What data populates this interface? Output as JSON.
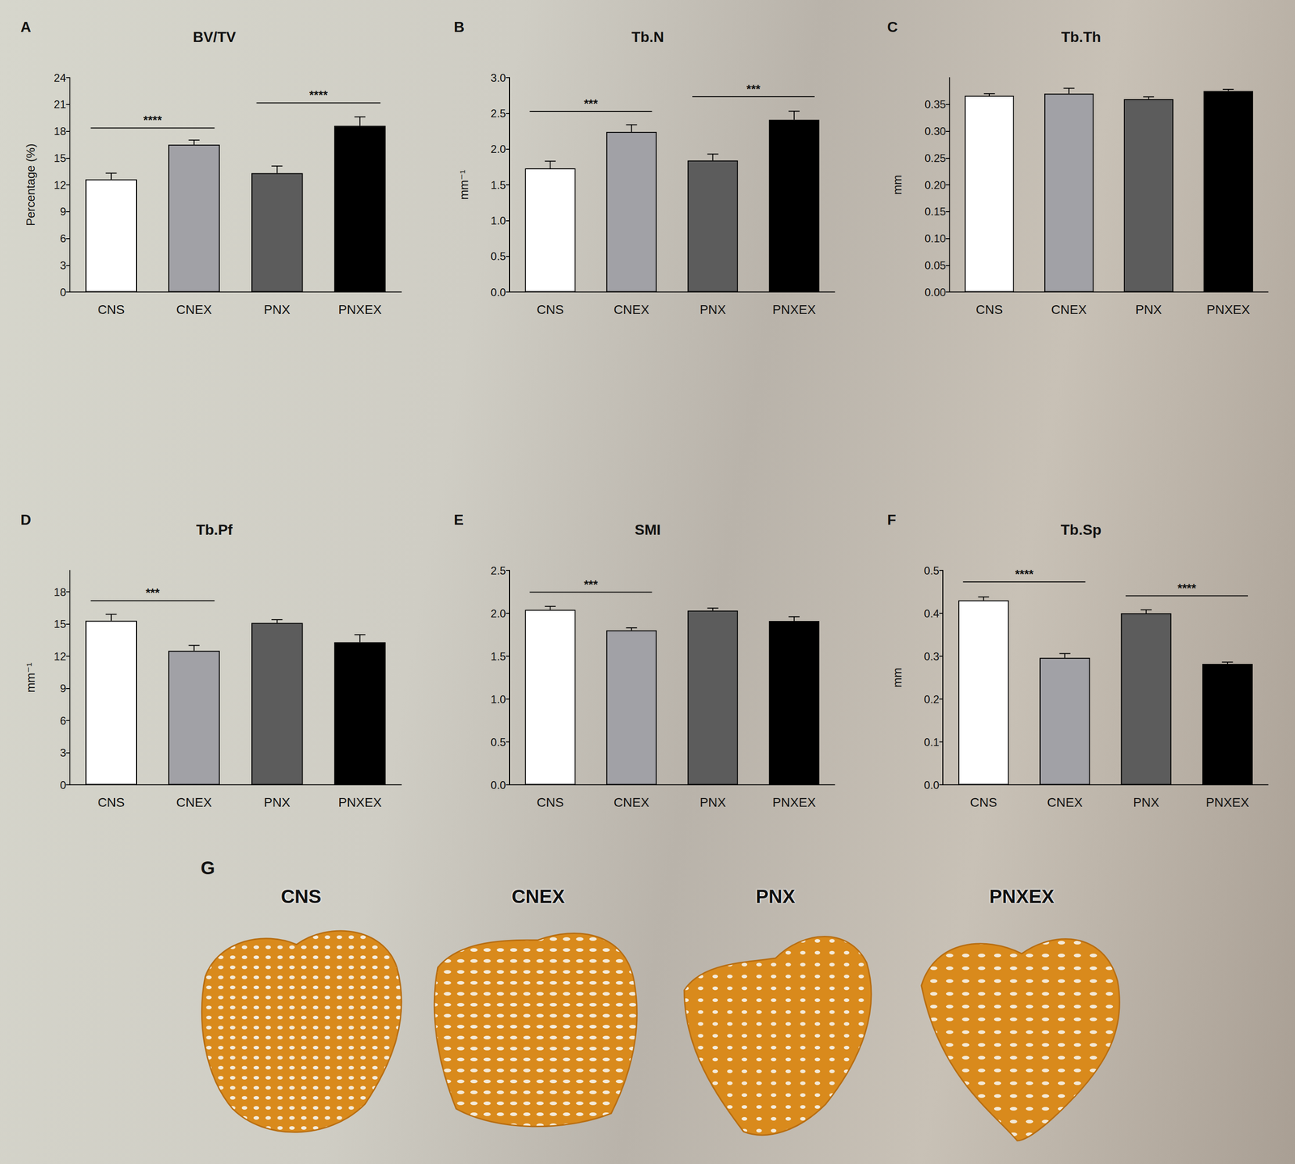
{
  "chart_data": [
    {
      "panel": "A",
      "type": "bar",
      "title": "BV/TV",
      "y_label": "Percentage (%)",
      "categories": [
        "CNS",
        "CNEX",
        "PNX",
        "PNXEX"
      ],
      "values": [
        12.6,
        16.5,
        13.3,
        18.6
      ],
      "errors": [
        0.7,
        0.5,
        0.8,
        1.0
      ],
      "colors": [
        "#ffffff",
        "#a1a1a6",
        "#5c5c5c",
        "#000000"
      ],
      "ylim": [
        0,
        24
      ],
      "yticks": [
        0,
        3,
        6,
        9,
        12,
        15,
        18,
        21,
        24
      ],
      "annotations": [
        {
          "between": [
            "CNS",
            "CNEX"
          ],
          "label": "****"
        },
        {
          "between": [
            "PNX",
            "PNXEX"
          ],
          "label": "****"
        }
      ]
    },
    {
      "panel": "B",
      "type": "bar",
      "title": "Tb.N",
      "y_label": "mm⁻¹",
      "categories": [
        "CNS",
        "CNEX",
        "PNX",
        "PNXEX"
      ],
      "values": [
        1.73,
        2.24,
        1.84,
        2.41
      ],
      "errors": [
        0.1,
        0.1,
        0.09,
        0.12
      ],
      "colors": [
        "#ffffff",
        "#a1a1a6",
        "#5c5c5c",
        "#000000"
      ],
      "ylim": [
        0,
        3
      ],
      "yticks": [
        {
          "value": 0,
          "label": "0.0"
        },
        0.5,
        {
          "value": 1,
          "label": "1.0"
        },
        1.5,
        {
          "value": 2,
          "label": "2.0"
        },
        2.5,
        {
          "value": 3,
          "label": "3.0"
        }
      ],
      "annotations": [
        {
          "between": [
            "CNS",
            "CNEX"
          ],
          "label": "***"
        },
        {
          "between": [
            "PNX",
            "PNXEX"
          ],
          "label": "***"
        }
      ]
    },
    {
      "panel": "C",
      "type": "bar",
      "title": "Tb.Th",
      "y_label": "mm",
      "categories": [
        "CNS",
        "CNEX",
        "PNX",
        "PNXEX"
      ],
      "values": [
        0.366,
        0.37,
        0.36,
        0.375
      ],
      "errors": [
        0.004,
        0.01,
        0.004,
        0.003
      ],
      "colors": [
        "#ffffff",
        "#a1a1a6",
        "#5c5c5c",
        "#000000"
      ],
      "ylim": [
        0,
        0.4
      ],
      "yticks": [
        {
          "value": 0,
          "label": "0.00"
        },
        0.05,
        {
          "value": 0.1,
          "label": "0.10"
        },
        0.15,
        {
          "value": 0.2,
          "label": "0.20"
        },
        0.25,
        {
          "value": 0.3,
          "label": "0.30"
        },
        0.35
      ],
      "annotations": []
    },
    {
      "panel": "D",
      "type": "bar",
      "title": "Tb.Pf",
      "y_label": "mm⁻¹",
      "categories": [
        "CNS",
        "CNEX",
        "PNX",
        "PNXEX"
      ],
      "values": [
        15.3,
        12.5,
        15.1,
        13.3
      ],
      "errors": [
        0.6,
        0.5,
        0.3,
        0.7
      ],
      "colors": [
        "#ffffff",
        "#a1a1a6",
        "#5c5c5c",
        "#000000"
      ],
      "ylim": [
        0,
        20
      ],
      "yticks": [
        0,
        3,
        6,
        9,
        12,
        15,
        18
      ],
      "annotations": [
        {
          "between": [
            "CNS",
            "CNEX"
          ],
          "label": "***"
        }
      ]
    },
    {
      "panel": "E",
      "type": "bar",
      "title": "SMI",
      "categories": [
        "CNS",
        "CNEX",
        "PNX",
        "PNXEX"
      ],
      "values": [
        2.04,
        1.8,
        2.03,
        1.91
      ],
      "errors": [
        0.04,
        0.03,
        0.03,
        0.05
      ],
      "colors": [
        "#ffffff",
        "#a1a1a6",
        "#5c5c5c",
        "#000000"
      ],
      "ylim": [
        0,
        2.5
      ],
      "yticks": [
        {
          "value": 0,
          "label": "0.0"
        },
        0.5,
        {
          "value": 1,
          "label": "1.0"
        },
        1.5,
        {
          "value": 2,
          "label": "2.0"
        },
        2.5
      ],
      "annotations": [
        {
          "between": [
            "CNS",
            "CNEX"
          ],
          "label": "***"
        }
      ]
    },
    {
      "panel": "F",
      "type": "bar",
      "title": "Tb.Sp",
      "y_label": "mm",
      "categories": [
        "CNS",
        "CNEX",
        "PNX",
        "PNXEX"
      ],
      "values": [
        0.43,
        0.296,
        0.4,
        0.282
      ],
      "errors": [
        0.008,
        0.01,
        0.008,
        0.004
      ],
      "colors": [
        "#ffffff",
        "#a1a1a6",
        "#5c5c5c",
        "#000000"
      ],
      "ylim": [
        0,
        0.5
      ],
      "yticks": [
        {
          "value": 0,
          "label": "0.0"
        },
        0.1,
        0.2,
        0.3,
        0.4,
        0.5
      ],
      "annotations": [
        {
          "between": [
            "CNS",
            "CNEX"
          ],
          "label": "****"
        },
        {
          "between": [
            "PNX",
            "PNXEX"
          ],
          "label": "****"
        }
      ]
    }
  ],
  "image_panel": {
    "panel": "G",
    "labels": [
      "CNS",
      "CNEX",
      "PNX",
      "PNXEX"
    ]
  }
}
